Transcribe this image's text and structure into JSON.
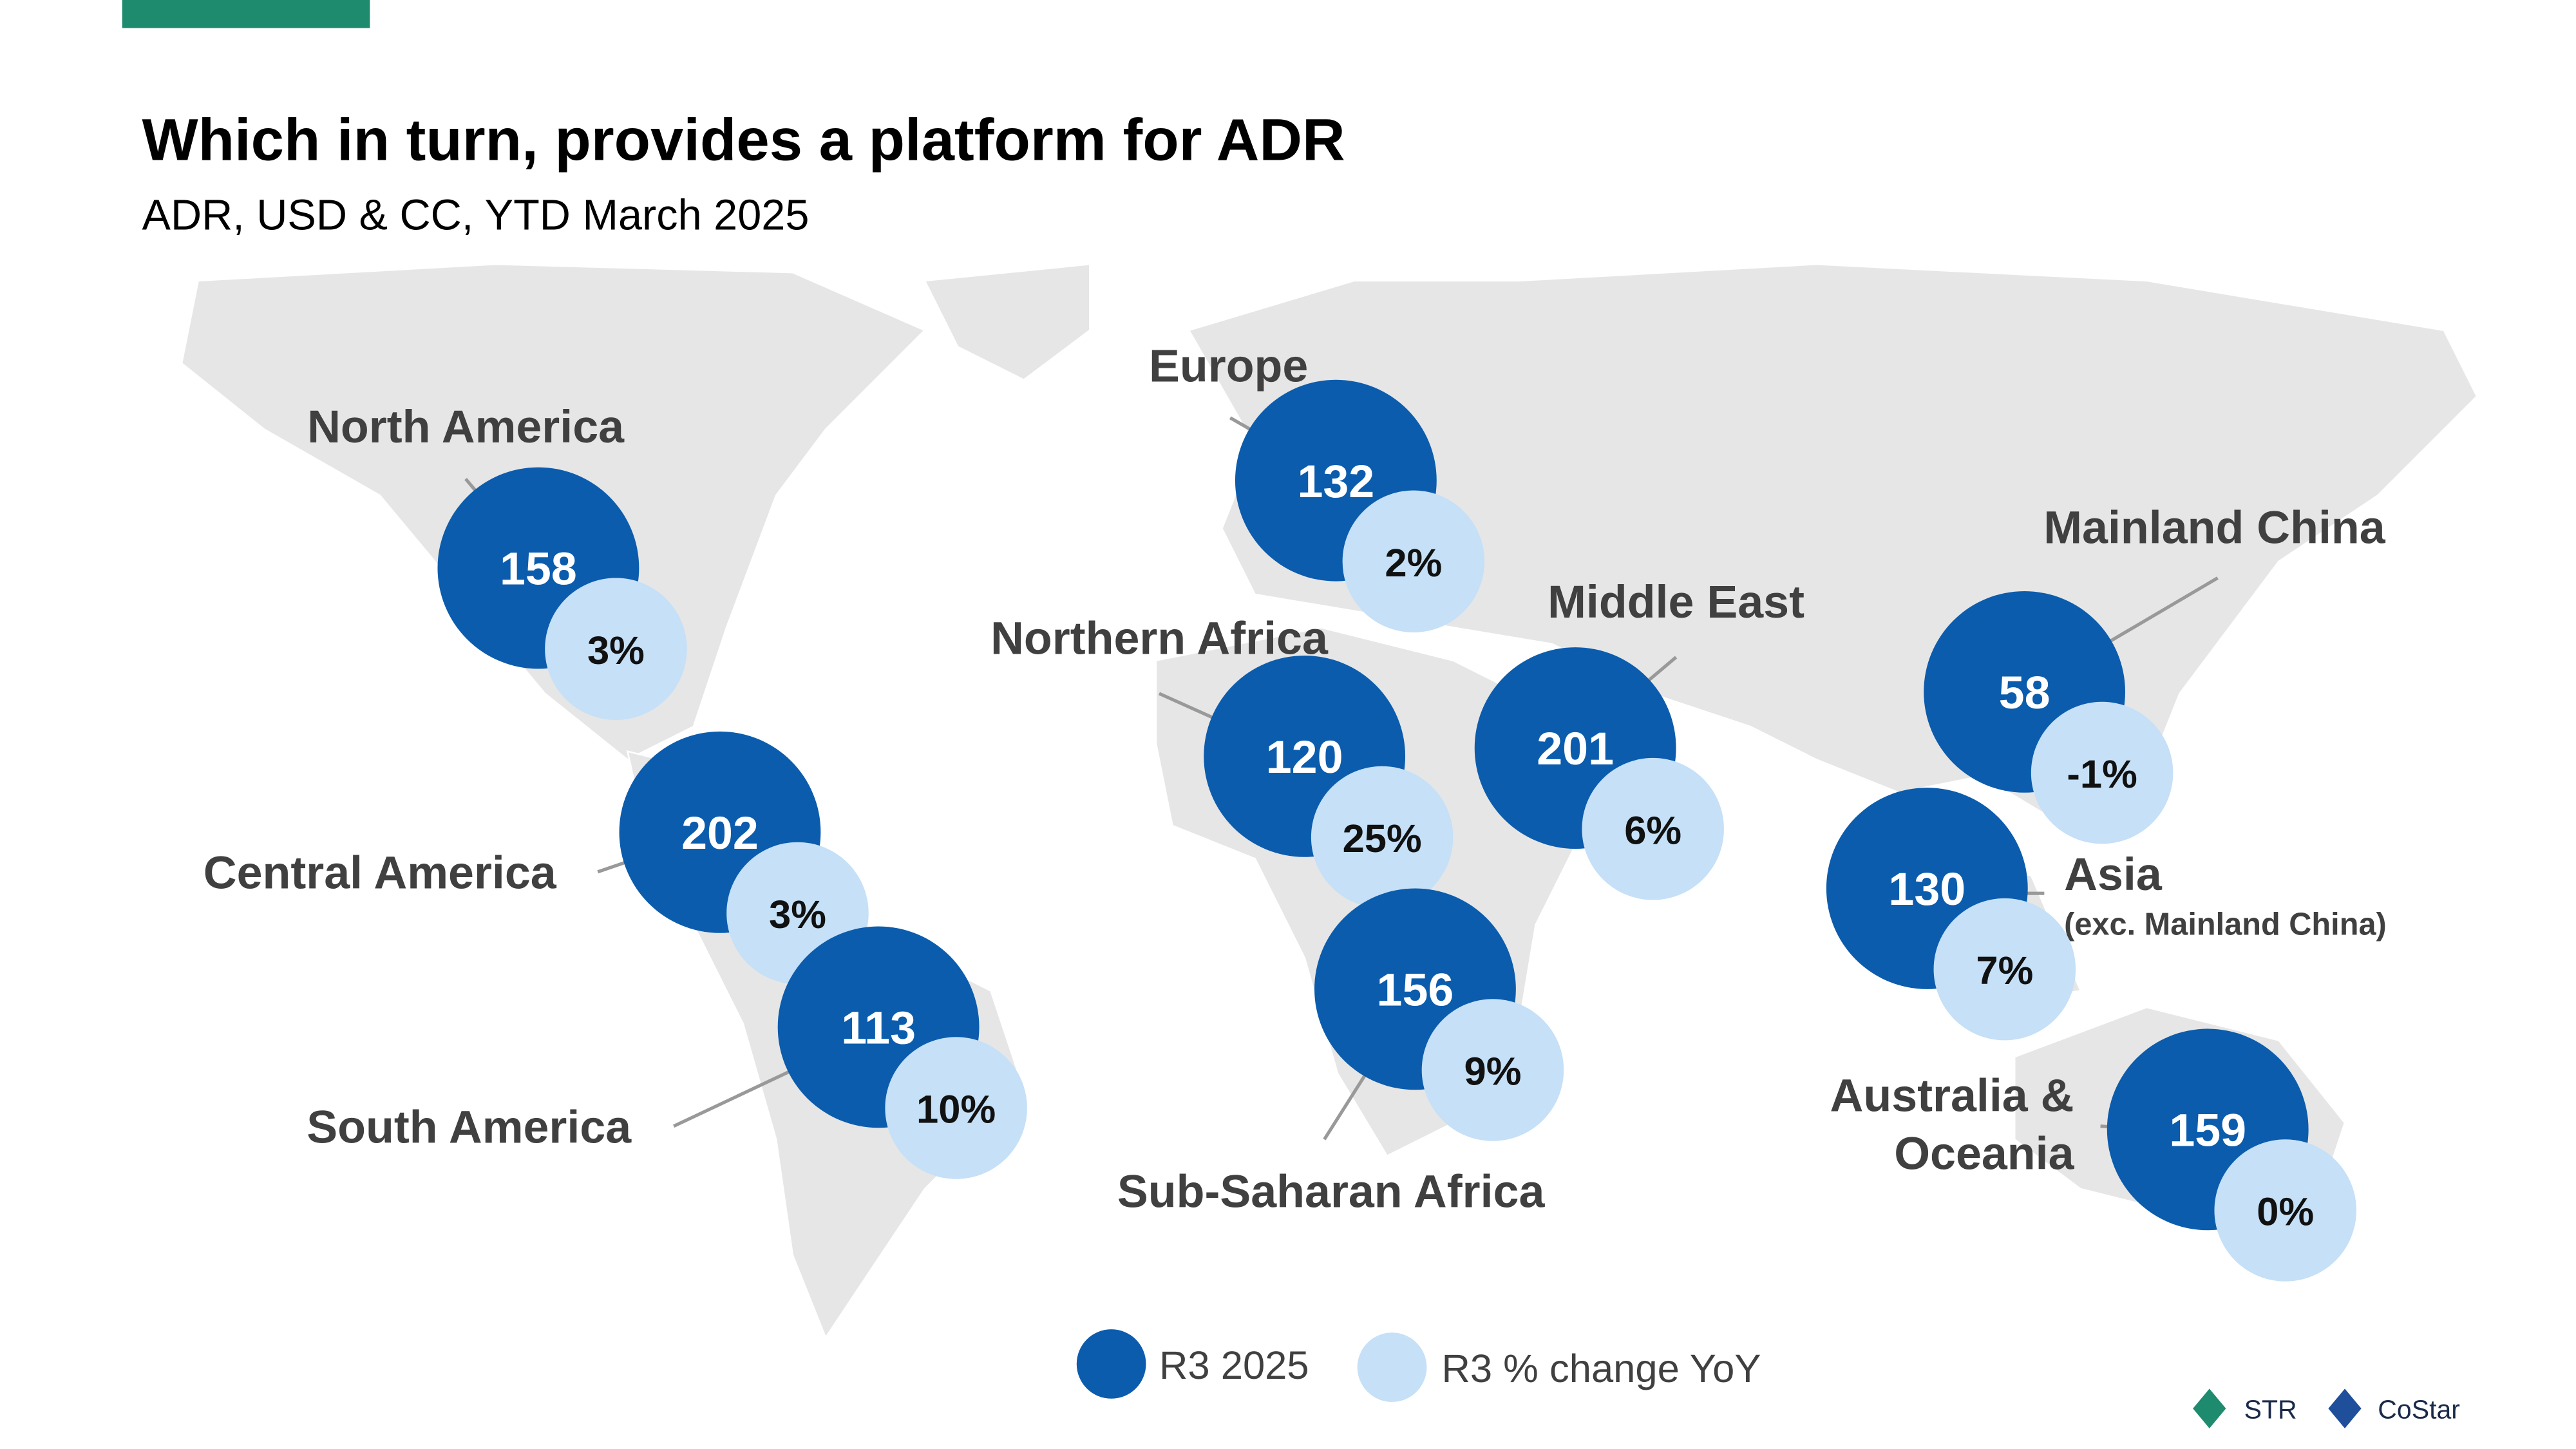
{
  "header": {
    "title": "Which in turn, provides a platform for ADR",
    "subtitle": "ADR, USD & CC, YTD March 2025"
  },
  "regions": [
    {
      "label_lines": [
        "North America"
      ],
      "adr": 158,
      "change": "3%"
    },
    {
      "label_lines": [
        "Central America"
      ],
      "adr": 202,
      "change": "3%"
    },
    {
      "label_lines": [
        "South America"
      ],
      "adr": 113,
      "change": "10%"
    },
    {
      "label_lines": [
        "Europe"
      ],
      "adr": 132,
      "change": "2%"
    },
    {
      "label_lines": [
        "Northern Africa"
      ],
      "adr": 120,
      "change": "25%"
    },
    {
      "label_lines": [
        "Sub-Saharan Africa"
      ],
      "adr": 156,
      "change": "9%"
    },
    {
      "label_lines": [
        "Middle East"
      ],
      "adr": 201,
      "change": "6%"
    },
    {
      "label_lines": [
        "Mainland China"
      ],
      "adr": 58,
      "change": "-1%"
    },
    {
      "label_lines": [
        "Asia",
        "(exc. Mainland China)"
      ],
      "adr": 130,
      "change": "7%"
    },
    {
      "label_lines": [
        "Australia &",
        "Oceania"
      ],
      "adr": 159,
      "change": "0%"
    }
  ],
  "legend": {
    "items": [
      "R3 2025",
      "R3 % change YoY"
    ],
    "colors": [
      "#0b5cad",
      "#c5e0f7"
    ]
  },
  "logos": [
    "STR",
    "CoStar"
  ]
}
